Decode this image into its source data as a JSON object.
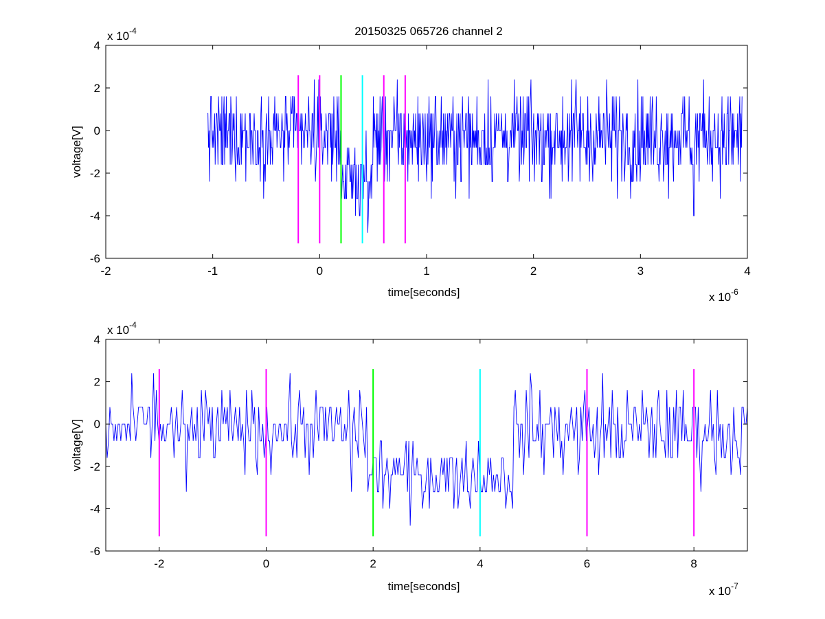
{
  "figure_title": "20150325 065726 channel 2",
  "colors": {
    "signal": "#0000ff",
    "marker_magenta": "#ff00ff",
    "marker_green": "#00ff00",
    "marker_cyan": "#00ffff",
    "axes": "#000000",
    "background": "#ffffff"
  },
  "chart_data": [
    {
      "type": "line",
      "title": "20150325 065726 channel 2",
      "xlabel": "time[seconds]",
      "ylabel": "voltage[V]",
      "x_exponent_label": "x 10",
      "x_exponent": "-6",
      "y_exponent_label": "x 10",
      "y_exponent": "-4",
      "xlim": [
        -2,
        4
      ],
      "ylim": [
        -6,
        4
      ],
      "xticks": [
        "-2",
        "-1",
        "0",
        "1",
        "2",
        "3",
        "4"
      ],
      "yticks": [
        "4",
        "2",
        "0",
        "-2",
        "-4",
        "-6"
      ],
      "grid": false,
      "series": [
        {
          "x_range": [
            -1.05,
            3.95
          ],
          "segments": [
            {
              "from": -1.05,
              "to": 0.2,
              "mean": -0.2,
              "amp": 1.9
            },
            {
              "from": 0.2,
              "to": 0.5,
              "mean": -2.3,
              "amp": 1.6
            },
            {
              "from": 0.5,
              "to": 3.95,
              "mean": -0.3,
              "amp": 2.1
            }
          ],
          "peaks": [
            [
              -0.05,
              2.6
            ],
            [
              0.45,
              -4.8
            ],
            [
              2.4,
              2.4
            ],
            [
              3.5,
              -4.0
            ]
          ]
        }
      ],
      "markers": [
        {
          "x": -0.2,
          "color": "magenta",
          "y": [
            -5.3,
            2.6
          ]
        },
        {
          "x": 0.0,
          "color": "magenta",
          "y": [
            -5.3,
            2.6
          ]
        },
        {
          "x": 0.2,
          "color": "green",
          "y": [
            -5.3,
            2.6
          ]
        },
        {
          "x": 0.4,
          "color": "cyan",
          "y": [
            -5.3,
            2.6
          ]
        },
        {
          "x": 0.6,
          "color": "magenta",
          "y": [
            -5.3,
            2.6
          ]
        },
        {
          "x": 0.8,
          "color": "magenta",
          "y": [
            -5.3,
            2.6
          ]
        }
      ]
    },
    {
      "type": "line",
      "title": "",
      "xlabel": "time[seconds]",
      "ylabel": "voltage[V]",
      "x_exponent_label": "x 10",
      "x_exponent": "-7",
      "y_exponent_label": "x 10",
      "y_exponent": "-4",
      "xlim": [
        -3,
        9
      ],
      "ylim": [
        -6,
        4
      ],
      "xticks": [
        "-2",
        "0",
        "2",
        "4",
        "6",
        "8"
      ],
      "yticks": [
        "4",
        "2",
        "0",
        "-2",
        "-4",
        "-6"
      ],
      "grid": false,
      "series": [
        {
          "x_range": [
            -3,
            9
          ],
          "segments": [
            {
              "from": -3.0,
              "to": 1.9,
              "mean": -0.2,
              "amp": 1.7
            },
            {
              "from": 1.9,
              "to": 4.6,
              "mean": -2.4,
              "amp": 1.5
            },
            {
              "from": 4.6,
              "to": 9.0,
              "mean": -0.3,
              "amp": 1.9
            }
          ],
          "peaks": [
            [
              -2.1,
              2.4
            ],
            [
              -1.5,
              -3.2
            ],
            [
              1.6,
              -3.0
            ],
            [
              2.7,
              -4.8
            ],
            [
              3.8,
              -3.0
            ],
            [
              4.6,
              -4.0
            ],
            [
              6.3,
              2.4
            ]
          ]
        }
      ],
      "markers": [
        {
          "x": -2.0,
          "color": "magenta",
          "y": [
            -5.3,
            2.6
          ]
        },
        {
          "x": 0.0,
          "color": "magenta",
          "y": [
            -5.3,
            2.6
          ]
        },
        {
          "x": 2.0,
          "color": "green",
          "y": [
            -5.3,
            2.6
          ]
        },
        {
          "x": 4.0,
          "color": "cyan",
          "y": [
            -5.3,
            2.6
          ]
        },
        {
          "x": 6.0,
          "color": "magenta",
          "y": [
            -5.3,
            2.6
          ]
        },
        {
          "x": 8.0,
          "color": "magenta",
          "y": [
            -5.3,
            2.6
          ]
        }
      ]
    }
  ]
}
